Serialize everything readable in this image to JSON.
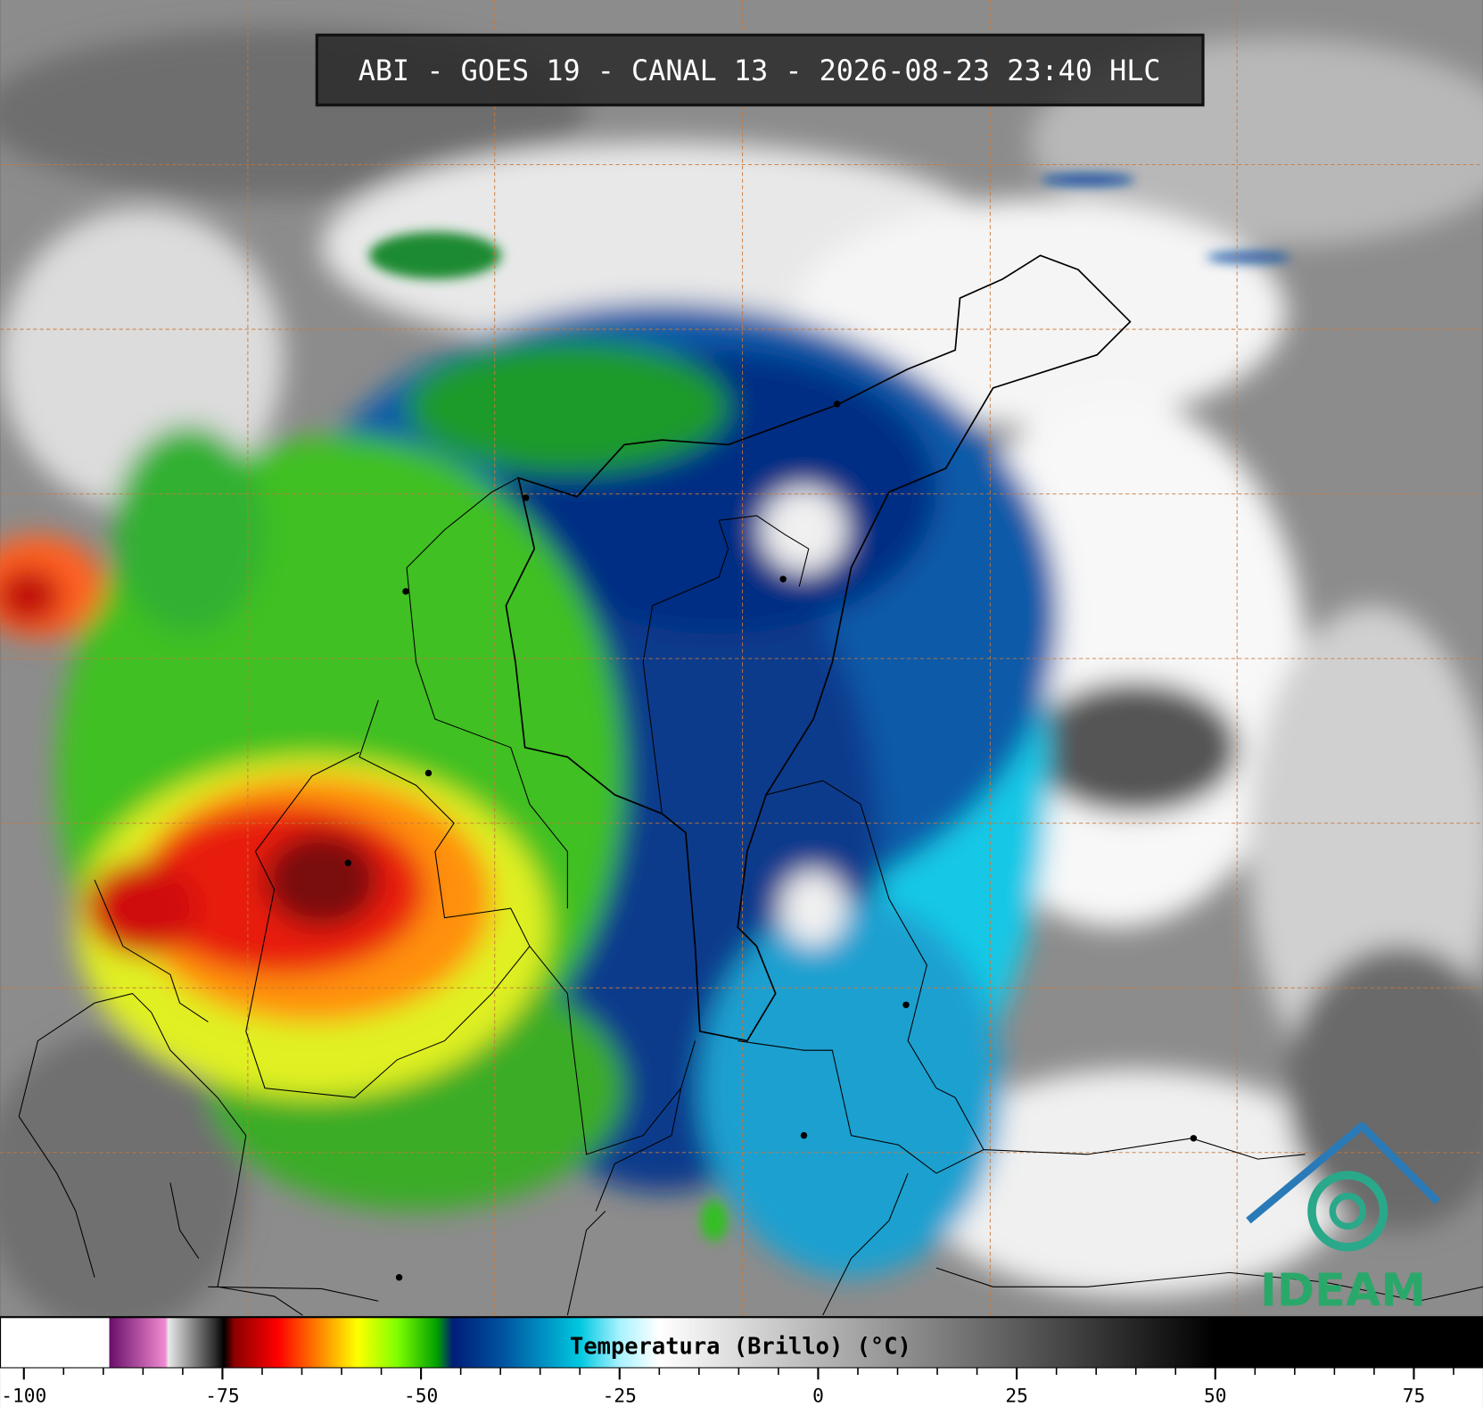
{
  "title": "ABI - GOES 19 - CANAL 13 - 2026-08-23 23:40 HLC",
  "logo": "IDEAM",
  "colorbar": {
    "label": "Temperatura (Brillo) (°C)",
    "range": [
      -103,
      83.7
    ],
    "ticks": [
      -100,
      -75,
      -50,
      -25,
      0,
      25,
      50,
      75
    ],
    "minor_ticks": [
      -95,
      -90,
      -85,
      -80,
      -70,
      -65,
      -60,
      -55,
      -45,
      -40,
      -35,
      -30,
      -20,
      -15,
      -10,
      -5,
      5,
      10,
      15,
      20,
      30,
      35,
      40,
      45,
      55,
      60,
      65,
      70,
      80
    ],
    "colormap": [
      [
        -103,
        "#ffffff"
      ],
      [
        -89.3,
        "#ffffff"
      ],
      [
        -89.2,
        "#6a0f6a"
      ],
      [
        -82.2,
        "#f08ad0"
      ],
      [
        -81.8,
        "#e8e8e8"
      ],
      [
        -76,
        "#303030"
      ],
      [
        -74.8,
        "#000000"
      ],
      [
        -73.5,
        "#8b0000"
      ],
      [
        -68,
        "#ff0000"
      ],
      [
        -63,
        "#ff8000"
      ],
      [
        -58,
        "#ffff00"
      ],
      [
        -53,
        "#80ff00"
      ],
      [
        -48,
        "#00a000"
      ],
      [
        -46,
        "#001e78"
      ],
      [
        -40,
        "#00509e"
      ],
      [
        -30,
        "#00c8e0"
      ],
      [
        -25,
        "#a8f2ff"
      ],
      [
        -20,
        "#ffffff"
      ],
      [
        50,
        "#000000"
      ],
      [
        83.7,
        "#000000"
      ]
    ]
  }
}
